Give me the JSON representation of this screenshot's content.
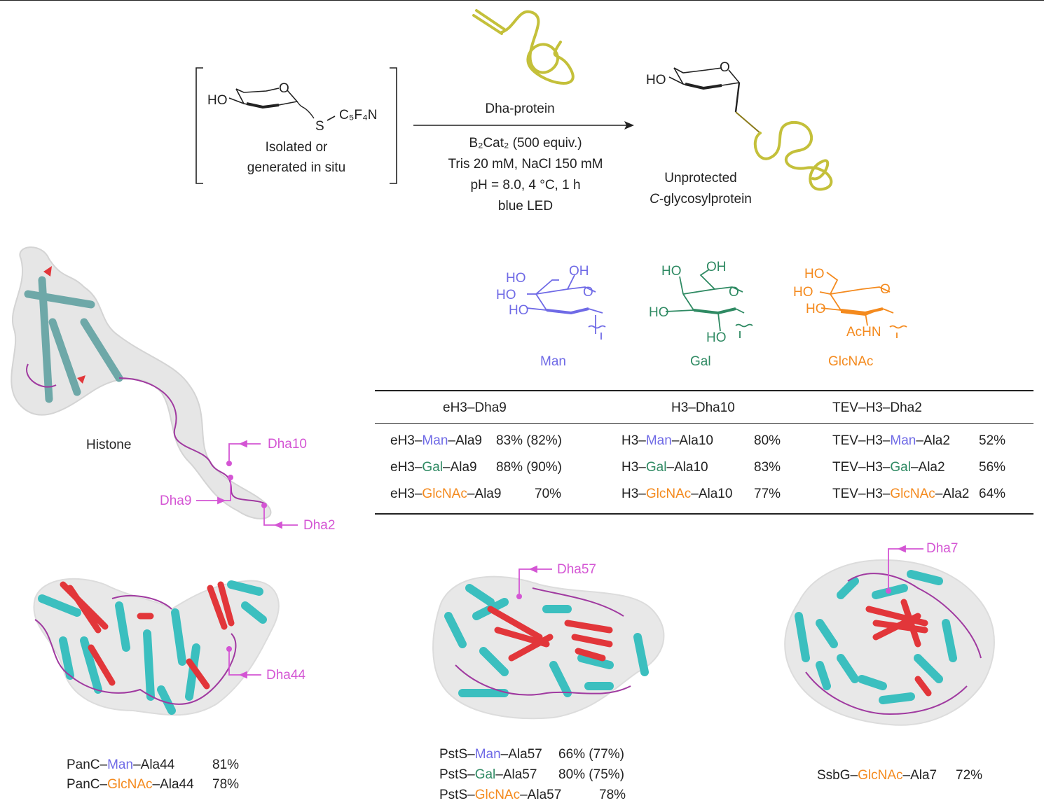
{
  "colors": {
    "man": "#6f6ae6",
    "gal": "#2f8a63",
    "glcnac": "#f48a1e",
    "dha": "#d455d4",
    "protein_line": "#c4c03a",
    "helix": "#3bbfbf",
    "sheet": "#e2363a",
    "coil": "#a03aa0"
  },
  "reaction": {
    "reagent_tail": "C₅F₄N",
    "reagent_S": "S",
    "reagent_HO": "HO",
    "reagent_O": "O",
    "reagent_note_1": "Isolated or",
    "reagent_note_2": "generated in situ",
    "protein_label": "Dha-protein",
    "conditions": [
      "B₂Cat₂ (500 equiv.)",
      "Tris 20 mM, NaCl 150 mM",
      "pH = 8.0, 4 °C, 1 h",
      "blue LED"
    ],
    "product_HO": "HO",
    "product_O": "O",
    "product_label_1": "Unprotected",
    "product_label_2_italic": "C",
    "product_label_2_rest": "-glycosylprotein"
  },
  "sugars": [
    {
      "name": "Man",
      "labels": [
        "HO",
        "OH",
        "HO",
        "HO",
        "O"
      ]
    },
    {
      "name": "Gal",
      "labels": [
        "HO",
        "OH",
        "O",
        "HO",
        "HO"
      ]
    },
    {
      "name": "GlcNAc",
      "labels": [
        "HO",
        "HO",
        "HO",
        "O",
        "AcHN"
      ]
    }
  ],
  "histone": {
    "label": "Histone",
    "markers": [
      "Dha10",
      "Dha9",
      "Dha2"
    ]
  },
  "table": {
    "headers": [
      "eH3–Dha9",
      "H3–Dha10",
      "TEV–H3–Dha2"
    ],
    "rows": [
      [
        {
          "pre": "eH3–",
          "sugar": "Man",
          "post": "–Ala9",
          "yield": "83% (82%)"
        },
        {
          "pre": "H3–",
          "sugar": "Man",
          "post": "–Ala10",
          "yield": "80%"
        },
        {
          "pre": "TEV–H3–",
          "sugar": "Man",
          "post": "–Ala2",
          "yield": "52%"
        }
      ],
      [
        {
          "pre": "eH3–",
          "sugar": "Gal",
          "post": "–Ala9",
          "yield": "88% (90%)"
        },
        {
          "pre": "H3–",
          "sugar": "Gal",
          "post": "–Ala10",
          "yield": "83%"
        },
        {
          "pre": "TEV–H3–",
          "sugar": "Gal",
          "post": "–Ala2",
          "yield": "56%"
        }
      ],
      [
        {
          "pre": "eH3–",
          "sugar": "GlcNAc",
          "post": "–Ala9",
          "yield": "70%"
        },
        {
          "pre": "H3–",
          "sugar": "GlcNAc",
          "post": "–Ala10",
          "yield": "77%"
        },
        {
          "pre": "TEV–H3–",
          "sugar": "GlcNAc",
          "post": "–Ala2",
          "yield": "64%"
        }
      ]
    ]
  },
  "proteins": [
    {
      "marker": "Dha44",
      "results": [
        {
          "pre": "PanC–",
          "sugar": "Man",
          "post": "–Ala44",
          "yield": "81%"
        },
        {
          "pre": "PanC–",
          "sugar": "GlcNAc",
          "post": "–Ala44",
          "yield": "78%"
        }
      ]
    },
    {
      "marker": "Dha57",
      "results": [
        {
          "pre": "PstS–",
          "sugar": "Man",
          "post": "–Ala57",
          "yield": "66% (77%)"
        },
        {
          "pre": "PstS–",
          "sugar": "Gal",
          "post": "–Ala57",
          "yield": "80% (75%)"
        },
        {
          "pre": "PstS–",
          "sugar": "GlcNAc",
          "post": "–Ala57",
          "yield": "78%"
        }
      ]
    },
    {
      "marker": "Dha7",
      "results": [
        {
          "pre": "SsbG–",
          "sugar": "GlcNAc",
          "post": "–Ala7",
          "yield": "72%"
        }
      ]
    }
  ]
}
